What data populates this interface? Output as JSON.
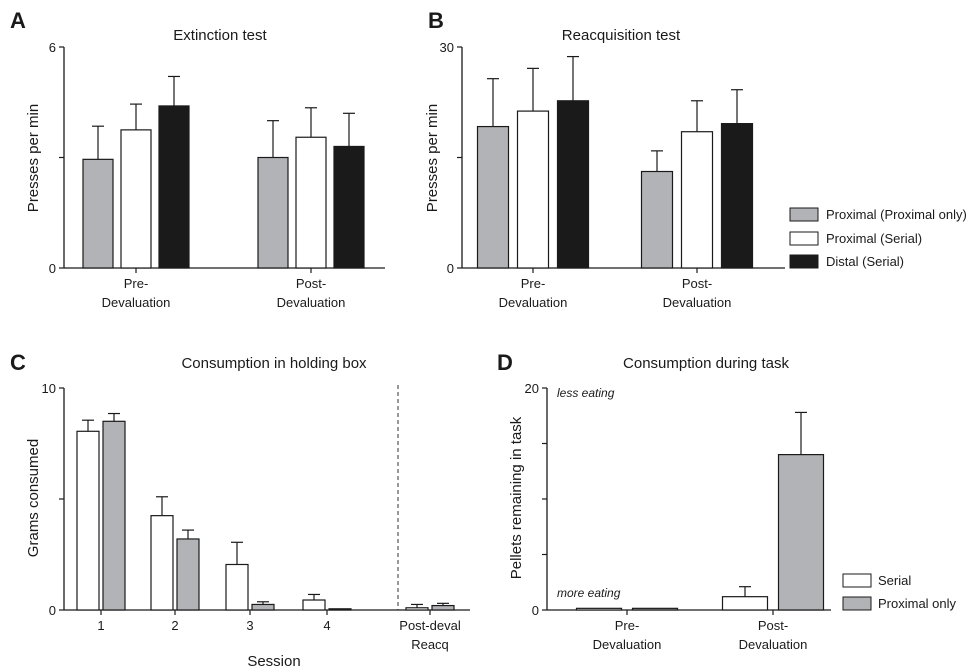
{
  "colors": {
    "proximal_only": "#b2b3b6",
    "serial_proximal": "#ffffff",
    "distal": "#1a1a1a",
    "edge": "#1a1a1a"
  },
  "chart_data": [
    {
      "panel": "A",
      "type": "bar",
      "title": "Extinction test",
      "ylabel": "Presses per min",
      "xlabel": "",
      "ylim": [
        0,
        6
      ],
      "yticks": [
        "0",
        "6"
      ],
      "categories": [
        [
          "Pre-",
          "Devaluation"
        ],
        [
          "Post-",
          "Devaluation"
        ]
      ],
      "series": [
        {
          "name": "Proximal (Proximal only)",
          "values": [
            2.95,
            3.0
          ],
          "errors": [
            0.9,
            1.0
          ]
        },
        {
          "name": "Proximal (Serial)",
          "values": [
            3.75,
            3.55
          ],
          "errors": [
            0.7,
            0.8
          ]
        },
        {
          "name": "Distal (Serial)",
          "values": [
            4.4,
            3.3
          ],
          "errors": [
            0.8,
            0.9
          ]
        }
      ]
    },
    {
      "panel": "B",
      "type": "bar",
      "title": "Reacquisition test",
      "ylabel": "Presses per min",
      "xlabel": "",
      "ylim": [
        0,
        30
      ],
      "yticks": [
        "0",
        "30"
      ],
      "categories": [
        [
          "Pre-",
          "Devaluation"
        ],
        [
          "Post-",
          "Devaluation"
        ]
      ],
      "series": [
        {
          "name": "Proximal (Proximal only)",
          "values": [
            19.2,
            13.1
          ],
          "errors": [
            6.5,
            2.8
          ]
        },
        {
          "name": "Proximal (Serial)",
          "values": [
            21.3,
            18.5
          ],
          "errors": [
            5.8,
            4.2
          ]
        },
        {
          "name": "Distal (Serial)",
          "values": [
            22.7,
            19.6
          ],
          "errors": [
            6.0,
            4.6
          ]
        }
      ]
    },
    {
      "panel": "C",
      "type": "bar",
      "title": "Consumption in holding box",
      "ylabel": "Grams consumed",
      "xlabel": "Session",
      "ylim": [
        0,
        10
      ],
      "yticks": [
        "0",
        "10"
      ],
      "categories": [
        [
          "1"
        ],
        [
          "2"
        ],
        [
          "3"
        ],
        [
          "4"
        ],
        [
          "Post-deval",
          "Reacq"
        ]
      ],
      "series": [
        {
          "name": "Serial",
          "values": [
            8.05,
            4.25,
            2.05,
            0.45,
            0.1
          ],
          "errors": [
            0.5,
            0.85,
            1.0,
            0.25,
            0.15
          ]
        },
        {
          "name": "Proximal only",
          "values": [
            8.5,
            3.2,
            0.25,
            0.03,
            0.2
          ],
          "errors": [
            0.35,
            0.4,
            0.12,
            0.0,
            0.1
          ]
        }
      ]
    },
    {
      "panel": "D",
      "type": "bar",
      "title": "Consumption during task",
      "ylabel": "Pellets remaining in task",
      "xlabel": "",
      "ylim": [
        0,
        20
      ],
      "yticks": [
        "0",
        "20"
      ],
      "annotations": [
        "less eating",
        "more eating"
      ],
      "categories": [
        [
          "Pre-",
          "Devaluation"
        ],
        [
          "Post-",
          "Devaluation"
        ]
      ],
      "series": [
        {
          "name": "Serial",
          "values": [
            0.15,
            1.2
          ],
          "errors": [
            0.0,
            0.9
          ]
        },
        {
          "name": "Proximal only",
          "values": [
            0.15,
            14.0
          ],
          "errors": [
            0.0,
            3.8
          ]
        }
      ]
    }
  ],
  "legends": {
    "AB": [
      "Proximal (Proximal only)",
      "Proximal (Serial)",
      "Distal (Serial)"
    ],
    "D": [
      "Serial",
      "Proximal only"
    ]
  },
  "panel_letters": [
    "A",
    "B",
    "C",
    "D"
  ]
}
